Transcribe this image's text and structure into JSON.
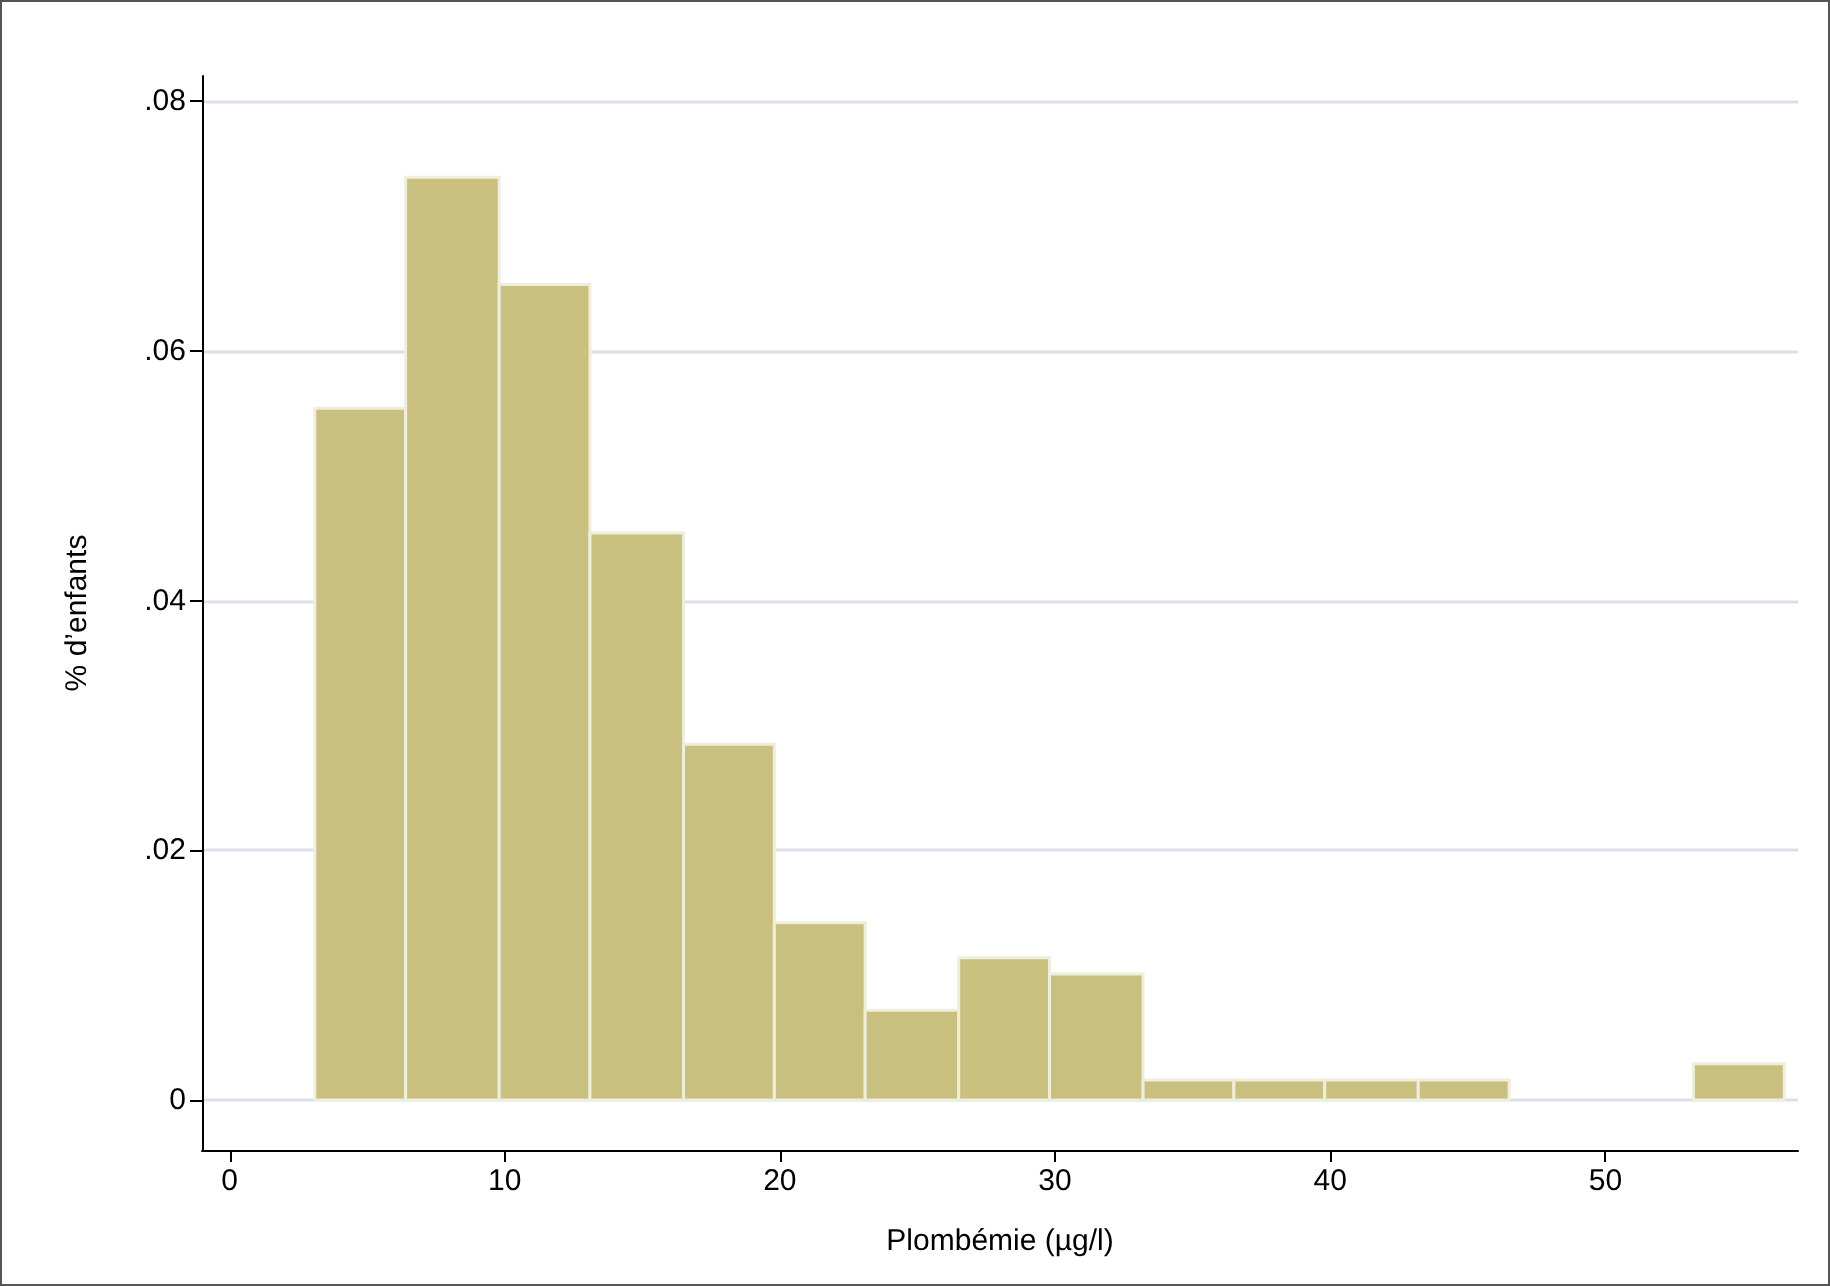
{
  "chart_data": {
    "type": "histogram",
    "xlabel": "Plombémie (µg/l)",
    "ylabel": "% d’enfants",
    "bins": [
      3.1,
      6.4,
      9.8,
      13.1,
      16.5,
      19.8,
      23.1,
      26.5,
      29.8,
      33.2,
      36.5,
      39.8,
      43.2,
      46.5,
      53.2,
      56.5
    ],
    "values": [
      0.0554,
      0.0739,
      0.0653,
      0.0454,
      0.0285,
      0.0142,
      0.0072,
      0.0114,
      0.0101,
      0.0016,
      0.0016,
      0.0016,
      0.0016,
      0,
      0.0029
    ],
    "color": "#c9bf7f",
    "xlim": [
      -1,
      57
    ],
    "xticks": [
      0,
      10,
      20,
      30,
      40,
      50
    ],
    "ylim": [
      -0.004,
      0.082
    ],
    "yticks": [
      0,
      {
        "value": 0.02,
        "label": ".02"
      },
      {
        "value": 0.04,
        "label": ".04"
      },
      {
        "value": 0.06,
        "label": ".06"
      },
      {
        "value": 0.08,
        "label": ".08"
      }
    ],
    "grid": "y"
  }
}
